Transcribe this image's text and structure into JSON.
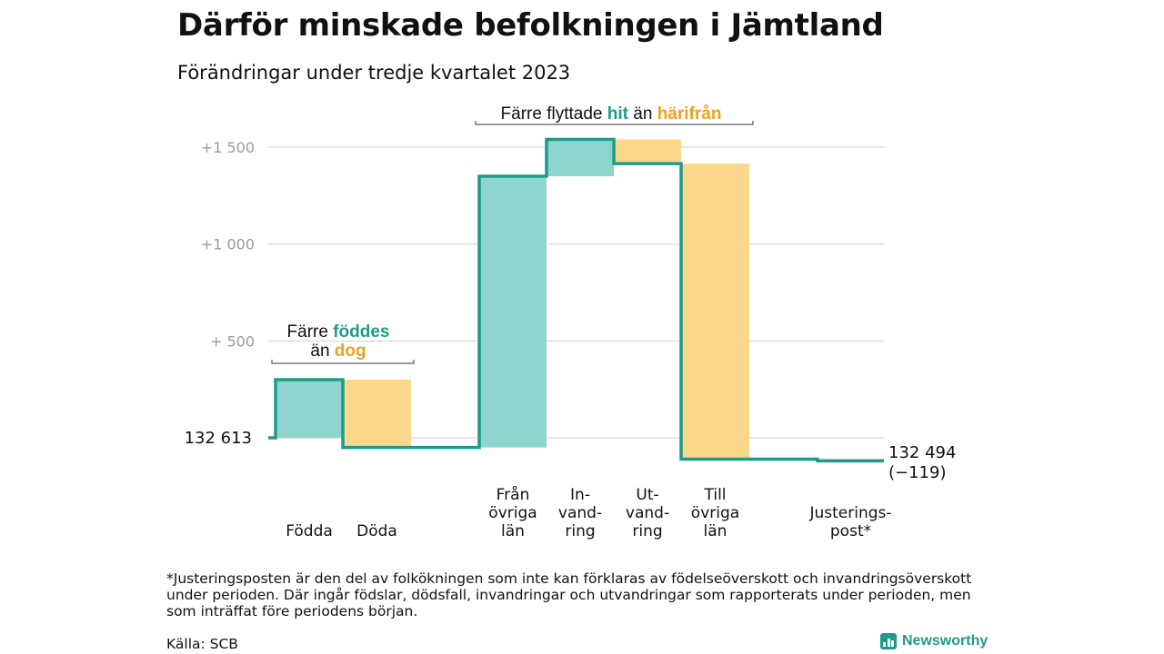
{
  "title": "Därför minskade befolkningen i Jämtland",
  "subtitle": "Förändringar under tredje kvartalet 2023",
  "footnote": "*Justeringsposten är den del av folkökningen som inte kan förklaras av födelseöverskott och invandringsöverskott under perioden. Där ingår födslar, dödsfall, invandringar och utvandringar som rapporterats under perioden, men som inträffat före periodens början.",
  "source": "Källa: SCB",
  "brand": "Newsworthy",
  "colors": {
    "increase": "#8ed6cd",
    "decrease": "#fad78b",
    "line": "#1e9b8a",
    "grid": "#dddddd",
    "teal_text": "#1e9b8a",
    "orange_text": "#f0a020"
  },
  "annotations": [
    {
      "id": "birth-death",
      "text_before": "Färre ",
      "word1": "föddes",
      "line2_before": "än ",
      "word2": "dog"
    },
    {
      "id": "migration",
      "text_before": "Färre flyttade ",
      "word1": "hit",
      "text_between": " än ",
      "word2": "härifrån"
    }
  ],
  "chart_data": {
    "type": "waterfall",
    "start_label": "132 613",
    "start_value": 132613,
    "end_label": "132 494",
    "end_change_label": "(−119)",
    "y_ticks": [
      {
        "value": 500,
        "label": "+ 500"
      },
      {
        "value": 1000,
        "label": "+1 000"
      },
      {
        "value": 1500,
        "label": "+1 500"
      }
    ],
    "ylim": [
      -150,
      1600
    ],
    "steps": [
      {
        "label": [
          "Födda"
        ],
        "change": 300,
        "kind": "increase"
      },
      {
        "label": [
          "Döda"
        ],
        "change": -350,
        "kind": "decrease"
      },
      {
        "label": [
          "Från",
          "övriga",
          "län"
        ],
        "change": 1400,
        "kind": "increase"
      },
      {
        "label": [
          "In-",
          "vand-",
          "ring"
        ],
        "change": 190,
        "kind": "increase"
      },
      {
        "label": [
          "Ut-",
          "vand-",
          "ring"
        ],
        "change": -125,
        "kind": "decrease"
      },
      {
        "label": [
          "Till",
          "övriga",
          "län"
        ],
        "change": -1525,
        "kind": "decrease"
      },
      {
        "label": [
          "Justerings-",
          "post*"
        ],
        "change": -9,
        "kind": "decrease"
      }
    ]
  }
}
